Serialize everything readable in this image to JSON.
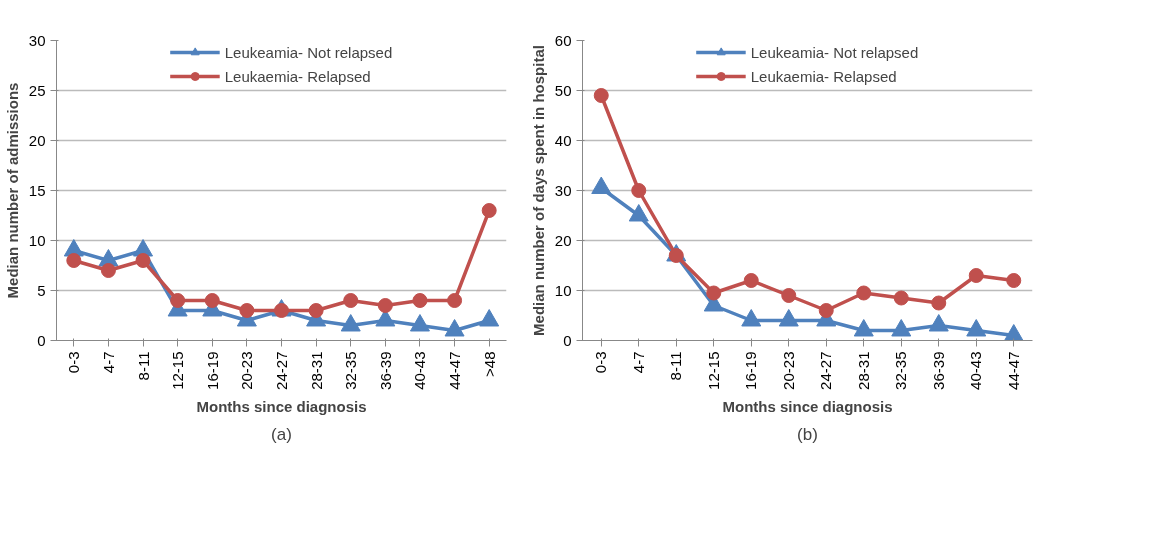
{
  "chart_data": [
    {
      "type": "line",
      "xlabel": "Months since diagnosis",
      "ylabel": "Median number of admissions",
      "categories": [
        "0-3",
        "4-7",
        "8-11",
        "12-15",
        "16-19",
        "20-23",
        "24-27",
        "28-31",
        "32-35",
        "36-39",
        "40-43",
        "44-47",
        ">48"
      ],
      "series": [
        {
          "name": "Leukeamia- Not relapsed",
          "color": "#4f81bd",
          "marker": "triangle",
          "values": [
            9,
            8,
            9,
            3,
            3,
            2,
            3,
            2,
            1.5,
            2,
            1.5,
            1,
            2
          ]
        },
        {
          "name": "Leukaemia- Relapsed",
          "color": "#c0504d",
          "marker": "circle",
          "values": [
            8,
            7,
            8,
            4,
            4,
            3,
            3,
            3,
            4,
            3.5,
            4,
            4,
            13
          ]
        }
      ],
      "ylim": [
        0,
        30
      ],
      "yticks": [
        0,
        5,
        10,
        15,
        20,
        25,
        30
      ],
      "grid": "y",
      "legend": "top",
      "annotations": [
        "(a)"
      ]
    },
    {
      "type": "line",
      "xlabel": "Months since diagnosis",
      "ylabel": "Median number of days spent in hospital",
      "categories": [
        "0-3",
        "4-7",
        "8-11",
        "12-15",
        "16-19",
        "20-23",
        "24-27",
        "28-31",
        "32-35",
        "36-39",
        "40-43",
        "44-47"
      ],
      "series": [
        {
          "name": "Leukeamia- Not relapsed",
          "color": "#4f81bd",
          "marker": "triangle",
          "values": [
            30.5,
            25,
            17,
            7,
            4,
            4,
            4,
            2,
            2,
            3,
            2,
            1
          ]
        },
        {
          "name": "Leukaemia- Relapsed",
          "color": "#c0504d",
          "marker": "circle",
          "values": [
            49,
            30,
            17,
            9.5,
            12,
            9,
            6,
            9.5,
            8.5,
            7.5,
            13,
            12
          ]
        }
      ],
      "ylim": [
        0,
        60
      ],
      "yticks": [
        0,
        10,
        20,
        30,
        40,
        50,
        60
      ],
      "grid": "y",
      "legend": "top",
      "annotations": [
        "(b)"
      ]
    }
  ]
}
